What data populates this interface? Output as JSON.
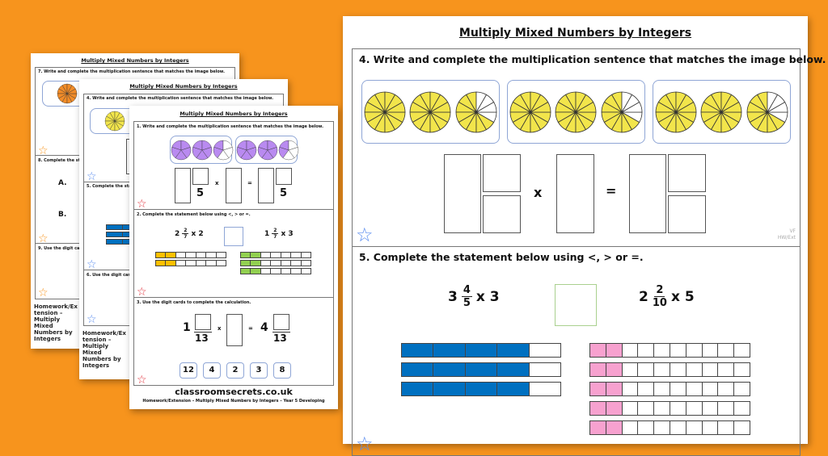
{
  "colors": {
    "background": "#F7941D",
    "yellow": "#F2E54B",
    "orange": "#F28C28",
    "purple": "#B98AF0",
    "blue": "#0070C0",
    "pink": "#F7A1CF",
    "gold": "#FFC000",
    "green": "#92D050",
    "star_blue": "#5B8DEF",
    "star_red": "#E0303A",
    "star_orange": "#F7941D"
  },
  "back_page": {
    "title": "Multiply Mixed Numbers by Integers",
    "q7": "7. Write and complete the multiplication sentence that matches the image below.",
    "q8": "8. Complete the statement below using <, > or =.",
    "q8_a": "A.",
    "q8_b": "B.",
    "q9": "9. Use the digit cards to complete the calculation.",
    "footer": "Homework/Extension – Multiply Mixed Numbers by Integers"
  },
  "middle_page": {
    "title": "Multiply Mixed Numbers by Integers",
    "q4": "4. Write and complete the multiplication sentence that matches the image below.",
    "q5": "5. Complete the statement below using <, > or =.",
    "q6": "6. Use the digit cards to complete the calculation.",
    "footer": "Homework/Extension – Multiply Mixed Numbers by Integers"
  },
  "front_page": {
    "title": "Multiply Mixed Numbers by Integers",
    "q1": {
      "prompt": "1. Write and complete the multiplication sentence that matches the image below.",
      "denominator": "5",
      "times": "x",
      "equals": "=",
      "groups": [
        [
          {
            "segments": 5,
            "filled": 5
          },
          {
            "segments": 5,
            "filled": 5
          },
          {
            "segments": 5,
            "filled": 2
          }
        ],
        [
          {
            "segments": 5,
            "filled": 5
          },
          {
            "segments": 5,
            "filled": 5
          },
          {
            "segments": 5,
            "filled": 2
          }
        ]
      ]
    },
    "q2": {
      "prompt": "2. Complete the statement below using <, > or =.",
      "left": {
        "whole": "2",
        "num": "2",
        "den": "7",
        "times": "x",
        "mult": "2"
      },
      "right": {
        "whole": "1",
        "num": "2",
        "den": "7",
        "times": "x",
        "mult": "3"
      },
      "left_bars": {
        "rows": 2,
        "cells": 7,
        "filled": 2
      },
      "right_bars": {
        "rows": 3,
        "cells": 7,
        "filled": 2
      }
    },
    "q3": {
      "prompt": "3. Use the digit cards to complete the calculation.",
      "whole_left": "1",
      "den": "13",
      "times": "x",
      "equals": "=",
      "whole_right": "4",
      "cards": [
        "12",
        "4",
        "2",
        "3",
        "8"
      ]
    },
    "brand": "classroomsecrets.co.uk",
    "footer": "Homework/Extension – Multiply Mixed Numbers by Integers – Year 5 Developing"
  },
  "zoomed_page": {
    "title": "Multiply Mixed Numbers by Integers",
    "q4": {
      "prompt": "4. Write and complete the multiplication sentence that matches the image below.",
      "times": "x",
      "equals": "=",
      "groups": [
        [
          {
            "segments": 12,
            "filled": 12
          },
          {
            "segments": 12,
            "filled": 12
          },
          {
            "segments": 12,
            "filled": 8
          }
        ],
        [
          {
            "segments": 12,
            "filled": 12
          },
          {
            "segments": 12,
            "filled": 12
          },
          {
            "segments": 12,
            "filled": 8
          }
        ],
        [
          {
            "segments": 12,
            "filled": 12
          },
          {
            "segments": 12,
            "filled": 12
          },
          {
            "segments": 12,
            "filled": 8
          }
        ]
      ],
      "code": "VF",
      "code2": "HW/Ext"
    },
    "q5": {
      "prompt": "5. Complete the statement below using <, > or =.",
      "left": {
        "whole": "3",
        "num": "4",
        "den": "5",
        "times": "x",
        "mult": "3"
      },
      "right": {
        "whole": "2",
        "num": "2",
        "den": "10",
        "times": "x",
        "mult": "5"
      },
      "left_bars": {
        "rows": 3,
        "cells": 5,
        "filled": 4
      },
      "right_bars": {
        "rows": 5,
        "cells": 10,
        "filled": 2
      }
    }
  }
}
